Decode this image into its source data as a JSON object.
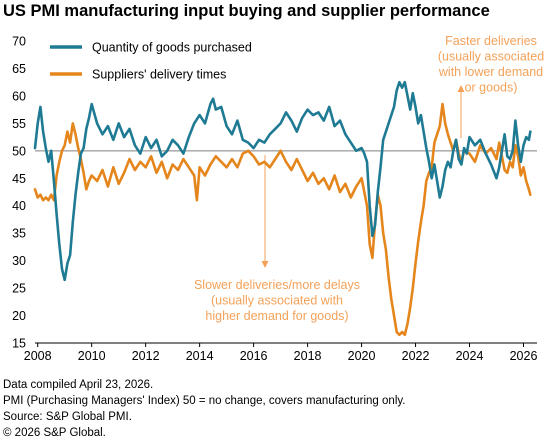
{
  "title": "US PMI manufacturing input buying and supplier performance",
  "footer": [
    "Data compiled April 23, 2026.",
    "PMI (Purchasing Managers' Index) 50 =  no change, covers manufacturing only.",
    "Source: S&P Global PMI.",
    "© 2026 S&P Global."
  ],
  "colors": {
    "purchased": "#1f7a93",
    "delivery": "#e5861c",
    "annotation": "#f4a259",
    "reference": "#7f7f7f"
  },
  "annotations": {
    "faster": [
      "Faster deliveries",
      "(usually associated",
      "with lower  demand",
      "or goods)"
    ],
    "slower": [
      "Slower deliveries/more delays",
      "(usually associated with",
      "higher demand for goods)"
    ]
  },
  "chart_data": {
    "type": "line",
    "title": "US PMI manufacturing input buying and supplier performance",
    "xlim": [
      2007.9,
      2026.5
    ],
    "ylim": [
      15,
      70
    ],
    "x_ticks": [
      2008,
      2010,
      2012,
      2014,
      2016,
      2018,
      2020,
      2022,
      2024,
      2026
    ],
    "y_ticks": [
      15,
      20,
      25,
      30,
      35,
      40,
      45,
      50,
      55,
      60,
      65,
      70
    ],
    "reference_line": 50,
    "legend_position": "top-left",
    "series": [
      {
        "name": "Quantity of goods purchased",
        "color": "#1f7a93",
        "points": [
          [
            2007.9,
            50.5
          ],
          [
            2008.0,
            55.0
          ],
          [
            2008.1,
            58.0
          ],
          [
            2008.2,
            53.5
          ],
          [
            2008.3,
            50.5
          ],
          [
            2008.4,
            48.0
          ],
          [
            2008.5,
            50.0
          ],
          [
            2008.6,
            44.5
          ],
          [
            2008.7,
            38.5
          ],
          [
            2008.8,
            33.0
          ],
          [
            2008.9,
            28.5
          ],
          [
            2009.0,
            26.5
          ],
          [
            2009.1,
            29.5
          ],
          [
            2009.2,
            31.0
          ],
          [
            2009.3,
            37.0
          ],
          [
            2009.4,
            42.0
          ],
          [
            2009.5,
            46.0
          ],
          [
            2009.6,
            49.5
          ],
          [
            2009.7,
            50.5
          ],
          [
            2009.8,
            54.0
          ],
          [
            2009.9,
            56.0
          ],
          [
            2010.0,
            58.5
          ],
          [
            2010.2,
            55.0
          ],
          [
            2010.4,
            53.0
          ],
          [
            2010.6,
            54.5
          ],
          [
            2010.8,
            52.0
          ],
          [
            2011.0,
            55.0
          ],
          [
            2011.2,
            52.5
          ],
          [
            2011.4,
            54.0
          ],
          [
            2011.6,
            51.0
          ],
          [
            2011.8,
            49.5
          ],
          [
            2012.0,
            52.5
          ],
          [
            2012.2,
            50.5
          ],
          [
            2012.4,
            52.0
          ],
          [
            2012.6,
            49.0
          ],
          [
            2012.8,
            50.0
          ],
          [
            2013.0,
            52.0
          ],
          [
            2013.2,
            51.0
          ],
          [
            2013.4,
            49.5
          ],
          [
            2013.6,
            52.5
          ],
          [
            2013.8,
            55.0
          ],
          [
            2014.0,
            56.5
          ],
          [
            2014.2,
            55.0
          ],
          [
            2014.4,
            58.5
          ],
          [
            2014.5,
            59.5
          ],
          [
            2014.6,
            57.5
          ],
          [
            2014.8,
            58.0
          ],
          [
            2015.0,
            54.5
          ],
          [
            2015.2,
            53.0
          ],
          [
            2015.4,
            55.5
          ],
          [
            2015.6,
            52.0
          ],
          [
            2015.8,
            51.5
          ],
          [
            2016.0,
            50.5
          ],
          [
            2016.2,
            52.0
          ],
          [
            2016.4,
            51.5
          ],
          [
            2016.6,
            53.0
          ],
          [
            2016.8,
            54.0
          ],
          [
            2017.0,
            55.0
          ],
          [
            2017.2,
            57.0
          ],
          [
            2017.4,
            55.5
          ],
          [
            2017.6,
            53.5
          ],
          [
            2017.8,
            56.0
          ],
          [
            2018.0,
            57.5
          ],
          [
            2018.2,
            56.5
          ],
          [
            2018.4,
            57.0
          ],
          [
            2018.6,
            55.5
          ],
          [
            2018.8,
            58.0
          ],
          [
            2019.0,
            54.5
          ],
          [
            2019.2,
            55.5
          ],
          [
            2019.4,
            53.0
          ],
          [
            2019.6,
            51.5
          ],
          [
            2019.8,
            50.0
          ],
          [
            2020.0,
            50.5
          ],
          [
            2020.1,
            49.5
          ],
          [
            2020.2,
            48.0
          ],
          [
            2020.3,
            40.0
          ],
          [
            2020.4,
            34.5
          ],
          [
            2020.5,
            36.5
          ],
          [
            2020.6,
            42.5
          ],
          [
            2020.7,
            47.0
          ],
          [
            2020.8,
            52.0
          ],
          [
            2021.0,
            55.0
          ],
          [
            2021.2,
            58.0
          ],
          [
            2021.3,
            61.0
          ],
          [
            2021.4,
            62.5
          ],
          [
            2021.5,
            61.5
          ],
          [
            2021.6,
            62.5
          ],
          [
            2021.7,
            60.0
          ],
          [
            2021.8,
            57.5
          ],
          [
            2021.9,
            60.5
          ],
          [
            2022.0,
            58.0
          ],
          [
            2022.1,
            55.0
          ],
          [
            2022.2,
            56.5
          ],
          [
            2022.3,
            53.5
          ],
          [
            2022.4,
            50.5
          ],
          [
            2022.5,
            48.0
          ],
          [
            2022.6,
            45.0
          ],
          [
            2022.7,
            47.5
          ],
          [
            2022.8,
            44.5
          ],
          [
            2022.9,
            41.5
          ],
          [
            2023.0,
            43.5
          ],
          [
            2023.1,
            46.5
          ],
          [
            2023.2,
            48.0
          ],
          [
            2023.3,
            47.0
          ],
          [
            2023.4,
            50.0
          ],
          [
            2023.5,
            52.0
          ],
          [
            2023.6,
            48.5
          ],
          [
            2023.7,
            47.5
          ],
          [
            2023.8,
            50.5
          ],
          [
            2023.9,
            49.5
          ],
          [
            2024.0,
            52.5
          ],
          [
            2024.2,
            51.0
          ],
          [
            2024.4,
            52.0
          ],
          [
            2024.6,
            49.5
          ],
          [
            2024.8,
            47.5
          ],
          [
            2025.0,
            45.0
          ],
          [
            2025.1,
            47.0
          ],
          [
            2025.2,
            50.0
          ],
          [
            2025.3,
            53.0
          ],
          [
            2025.4,
            49.0
          ],
          [
            2025.5,
            48.5
          ],
          [
            2025.6,
            50.0
          ],
          [
            2025.7,
            55.5
          ],
          [
            2025.8,
            51.0
          ],
          [
            2025.9,
            48.0
          ],
          [
            2026.0,
            51.0
          ],
          [
            2026.1,
            52.5
          ],
          [
            2026.2,
            52.0
          ],
          [
            2026.25,
            53.5
          ]
        ]
      },
      {
        "name": "Suppliers' delivery times",
        "color": "#e5861c",
        "points": [
          [
            2007.9,
            43.0
          ],
          [
            2008.0,
            41.5
          ],
          [
            2008.1,
            42.0
          ],
          [
            2008.2,
            41.0
          ],
          [
            2008.3,
            41.5
          ],
          [
            2008.4,
            41.0
          ],
          [
            2008.5,
            42.0
          ],
          [
            2008.6,
            41.0
          ],
          [
            2008.7,
            45.5
          ],
          [
            2008.8,
            48.0
          ],
          [
            2008.9,
            50.0
          ],
          [
            2009.0,
            51.0
          ],
          [
            2009.1,
            53.5
          ],
          [
            2009.2,
            51.5
          ],
          [
            2009.3,
            55.0
          ],
          [
            2009.4,
            53.0
          ],
          [
            2009.5,
            50.5
          ],
          [
            2009.6,
            48.5
          ],
          [
            2009.7,
            46.0
          ],
          [
            2009.8,
            43.0
          ],
          [
            2009.9,
            44.5
          ],
          [
            2010.0,
            45.5
          ],
          [
            2010.2,
            44.5
          ],
          [
            2010.4,
            46.5
          ],
          [
            2010.6,
            43.5
          ],
          [
            2010.8,
            47.0
          ],
          [
            2011.0,
            44.0
          ],
          [
            2011.2,
            46.0
          ],
          [
            2011.4,
            48.5
          ],
          [
            2011.6,
            46.5
          ],
          [
            2011.8,
            48.0
          ],
          [
            2012.0,
            47.0
          ],
          [
            2012.2,
            49.0
          ],
          [
            2012.4,
            46.0
          ],
          [
            2012.6,
            48.0
          ],
          [
            2012.8,
            45.0
          ],
          [
            2013.0,
            47.5
          ],
          [
            2013.2,
            46.5
          ],
          [
            2013.4,
            48.5
          ],
          [
            2013.6,
            47.0
          ],
          [
            2013.8,
            45.5
          ],
          [
            2013.9,
            41.0
          ],
          [
            2014.0,
            47.0
          ],
          [
            2014.2,
            45.5
          ],
          [
            2014.4,
            47.5
          ],
          [
            2014.6,
            49.0
          ],
          [
            2014.8,
            48.0
          ],
          [
            2015.0,
            47.0
          ],
          [
            2015.2,
            48.5
          ],
          [
            2015.4,
            47.0
          ],
          [
            2015.6,
            49.5
          ],
          [
            2015.8,
            50.0
          ],
          [
            2016.0,
            49.0
          ],
          [
            2016.2,
            47.5
          ],
          [
            2016.4,
            48.0
          ],
          [
            2016.6,
            47.0
          ],
          [
            2016.8,
            48.5
          ],
          [
            2017.0,
            50.0
          ],
          [
            2017.2,
            48.0
          ],
          [
            2017.4,
            46.5
          ],
          [
            2017.6,
            48.5
          ],
          [
            2017.8,
            46.5
          ],
          [
            2018.0,
            44.5
          ],
          [
            2018.2,
            46.0
          ],
          [
            2018.4,
            44.0
          ],
          [
            2018.6,
            45.0
          ],
          [
            2018.8,
            43.0
          ],
          [
            2019.0,
            45.5
          ],
          [
            2019.2,
            42.5
          ],
          [
            2019.4,
            44.0
          ],
          [
            2019.6,
            41.5
          ],
          [
            2019.8,
            43.5
          ],
          [
            2020.0,
            45.0
          ],
          [
            2020.1,
            42.5
          ],
          [
            2020.2,
            40.0
          ],
          [
            2020.3,
            33.0
          ],
          [
            2020.4,
            30.5
          ],
          [
            2020.5,
            37.0
          ],
          [
            2020.6,
            42.0
          ],
          [
            2020.7,
            40.0
          ],
          [
            2020.8,
            35.0
          ],
          [
            2020.9,
            32.0
          ],
          [
            2021.0,
            27.0
          ],
          [
            2021.1,
            23.0
          ],
          [
            2021.2,
            20.0
          ],
          [
            2021.3,
            17.0
          ],
          [
            2021.4,
            16.5
          ],
          [
            2021.5,
            17.0
          ],
          [
            2021.6,
            16.5
          ],
          [
            2021.7,
            18.5
          ],
          [
            2021.8,
            21.5
          ],
          [
            2021.9,
            25.0
          ],
          [
            2022.0,
            29.5
          ],
          [
            2022.1,
            33.5
          ],
          [
            2022.2,
            37.0
          ],
          [
            2022.3,
            40.0
          ],
          [
            2022.4,
            44.5
          ],
          [
            2022.5,
            46.0
          ],
          [
            2022.6,
            47.0
          ],
          [
            2022.7,
            51.5
          ],
          [
            2022.8,
            53.0
          ],
          [
            2022.9,
            54.5
          ],
          [
            2023.0,
            58.5
          ],
          [
            2023.1,
            55.0
          ],
          [
            2023.2,
            53.0
          ],
          [
            2023.3,
            51.5
          ],
          [
            2023.4,
            50.0
          ],
          [
            2023.5,
            52.0
          ],
          [
            2023.6,
            49.5
          ],
          [
            2023.7,
            48.0
          ],
          [
            2023.8,
            50.0
          ],
          [
            2024.0,
            49.5
          ],
          [
            2024.2,
            48.0
          ],
          [
            2024.4,
            51.0
          ],
          [
            2024.6,
            49.5
          ],
          [
            2024.8,
            50.5
          ],
          [
            2025.0,
            48.5
          ],
          [
            2025.1,
            51.5
          ],
          [
            2025.2,
            49.0
          ],
          [
            2025.3,
            46.5
          ],
          [
            2025.4,
            46.0
          ],
          [
            2025.5,
            48.0
          ],
          [
            2025.6,
            47.0
          ],
          [
            2025.7,
            51.0
          ],
          [
            2025.8,
            49.0
          ],
          [
            2025.9,
            45.5
          ],
          [
            2026.0,
            47.0
          ],
          [
            2026.1,
            44.5
          ],
          [
            2026.2,
            43.0
          ],
          [
            2026.25,
            42.0
          ]
        ]
      }
    ]
  }
}
